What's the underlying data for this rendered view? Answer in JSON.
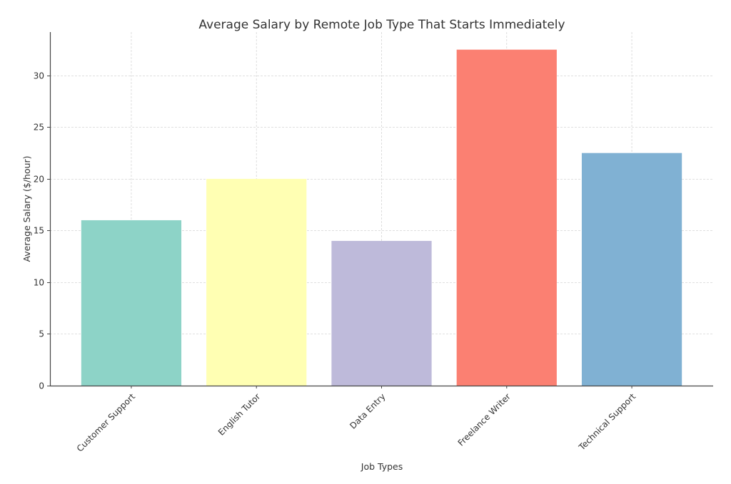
{
  "chart_data": {
    "type": "bar",
    "title": "Average Salary by Remote Job Type That Starts Immediately",
    "xlabel": "Job Types",
    "ylabel": "Average Salary ($/hour)",
    "categories": [
      "Customer Support",
      "English Tutor",
      "Data Entry",
      "Freelance Writer",
      "Technical Support"
    ],
    "values": [
      16,
      20,
      14,
      32.5,
      22.5
    ],
    "colors": [
      "#8dd3c7",
      "#ffffb3",
      "#bebada",
      "#fb8072",
      "#80b1d3"
    ],
    "ylim": [
      0,
      34.2
    ],
    "yticks": [
      0,
      5,
      10,
      15,
      20,
      25,
      30
    ],
    "grid": true
  }
}
